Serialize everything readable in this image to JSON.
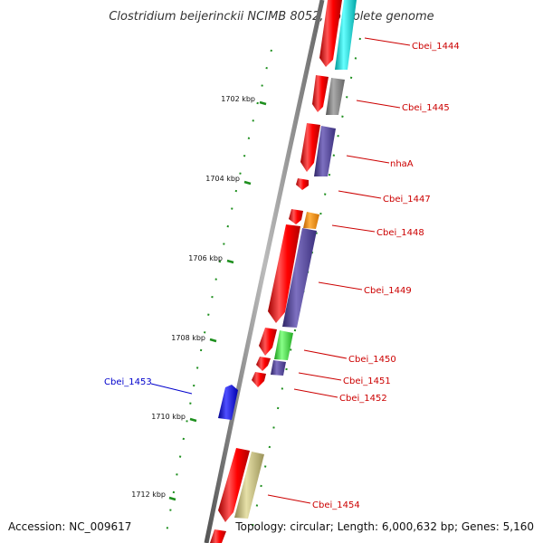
{
  "title": "Clostridium beijerinckii NCIMB 8052, complete genome",
  "accession": "Accession: NC_009617",
  "summary": "Topology: circular; Length: 6,000,632 bp; Genes: 5,160",
  "colors": {
    "forward_gene": "#ff0000",
    "reverse_gene": "#0000ff",
    "label_forward": "#cc0000",
    "label_reverse": "#0000cc",
    "backbone": "#808080",
    "tick": "#1e8f1e"
  },
  "ticks": [
    "1702 kbp",
    "1704 kbp",
    "1706 kbp",
    "1708 kbp",
    "1710 kbp",
    "1712 kbp"
  ],
  "genes": [
    {
      "label": "Cbei_1444",
      "strand": "+",
      "cog_color": "#00cccc"
    },
    {
      "label": "Cbei_1445",
      "strand": "+",
      "cog_color": "#777777"
    },
    {
      "label": "nhaA",
      "strand": "+",
      "cog_color": "#4b3d8f"
    },
    {
      "label": "Cbei_1447",
      "strand": "+",
      "cog_color": ""
    },
    {
      "label": "Cbei_1448",
      "strand": "+",
      "cog_color": "#ff8c00"
    },
    {
      "label": "Cbei_1449",
      "strand": "+",
      "cog_color": "#4b3d8f"
    },
    {
      "label": "Cbei_1450",
      "strand": "+",
      "cog_color": "#33cc33"
    },
    {
      "label": "Cbei_1451",
      "strand": "+",
      "cog_color": "#4b3d8f"
    },
    {
      "label": "Cbei_1452",
      "strand": "+",
      "cog_color": ""
    },
    {
      "label": "Cbei_1453",
      "strand": "-",
      "cog_color": ""
    },
    {
      "label": "Cbei_1454",
      "strand": "+",
      "cog_color": "#b5ad6e"
    }
  ]
}
